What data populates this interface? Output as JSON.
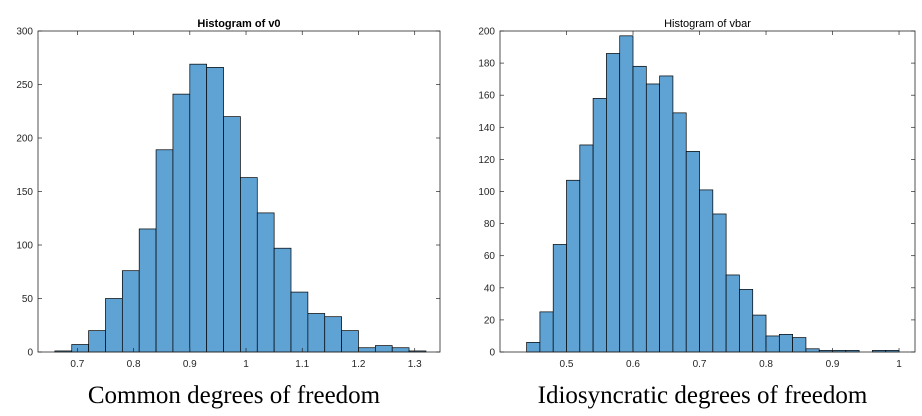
{
  "chart_data": [
    {
      "type": "histogram",
      "title": "Histogram of v0",
      "xlabel": "Common degrees of freedom",
      "bins": [
        0.66,
        0.69,
        0.72,
        0.75,
        0.78,
        0.81,
        0.84,
        0.87,
        0.9,
        0.93,
        0.96,
        0.99,
        1.02,
        1.05,
        1.08,
        1.11,
        1.14,
        1.17,
        1.2,
        1.23,
        1.26,
        1.29,
        1.32
      ],
      "values": [
        1,
        7,
        20,
        50,
        76,
        115,
        189,
        241,
        269,
        266,
        220,
        163,
        130,
        97,
        56,
        36,
        33,
        20,
        4,
        6,
        4,
        1
      ],
      "color": "#5fa2d4",
      "xlim": [
        0.63,
        1.345
      ],
      "xticks": [
        0.7,
        0.8,
        0.9,
        1,
        1.1,
        1.2,
        1.3
      ],
      "ylim": [
        0,
        300
      ],
      "yticks": [
        0,
        50,
        100,
        150,
        200,
        250,
        300
      ]
    },
    {
      "type": "histogram",
      "title": "Histogram of vbar",
      "xlabel": "Idiosyncratic degrees of freedom",
      "bins": [
        0.44,
        0.46,
        0.48,
        0.5,
        0.52,
        0.54,
        0.56,
        0.58,
        0.6,
        0.62,
        0.64,
        0.66,
        0.68,
        0.7,
        0.72,
        0.74,
        0.76,
        0.78,
        0.8,
        0.82,
        0.84,
        0.86,
        0.88,
        0.9,
        0.92,
        0.94,
        0.96,
        0.98,
        1.0
      ],
      "values": [
        6,
        25,
        67,
        107,
        129,
        158,
        186,
        197,
        178,
        167,
        172,
        149,
        125,
        101,
        86,
        48,
        39,
        23,
        10,
        11,
        9,
        2,
        1,
        1,
        1,
        0,
        1,
        1
      ],
      "color": "#5fa2d4",
      "xlim": [
        0.4,
        1.024
      ],
      "xticks": [
        0.5,
        0.6,
        0.7,
        0.8,
        0.9,
        1
      ],
      "ylim": [
        0,
        200
      ],
      "yticks": [
        0,
        20,
        40,
        60,
        80,
        100,
        120,
        140,
        160,
        180,
        200
      ]
    }
  ]
}
